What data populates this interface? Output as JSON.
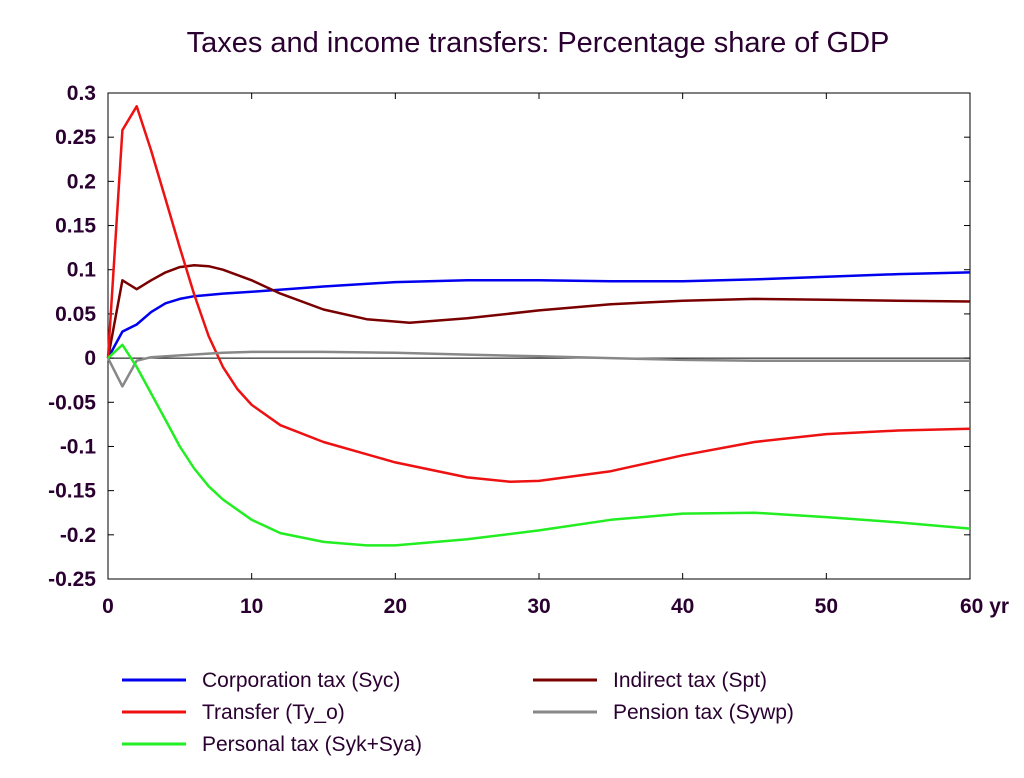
{
  "chart_data": {
    "type": "line",
    "title": "Taxes and income transfers: Percentage share of GDP",
    "xlabel": "",
    "ylabel": "",
    "xlim": [
      0,
      60
    ],
    "ylim": [
      -0.25,
      0.3
    ],
    "x_ticks": [
      0,
      10,
      20,
      30,
      40,
      50,
      60
    ],
    "x_tick_labels": [
      "0",
      "10",
      "20",
      "30",
      "40",
      "50",
      "60 yr"
    ],
    "y_ticks": [
      0.3,
      0.25,
      0.2,
      0.15,
      0.1,
      0.05,
      0,
      -0.05,
      -0.1,
      -0.15,
      -0.2,
      -0.25
    ],
    "y_tick_labels": [
      "0.3",
      "0.25",
      "0.2",
      "0.15",
      "0.1",
      "0.05",
      "0",
      "-0.05",
      "-0.1",
      "-0.15",
      "-0.2",
      "-0.25"
    ],
    "grid": false,
    "legend_position": "bottom",
    "series": [
      {
        "name": "Corporation tax (Syc)",
        "color": "#0000ee",
        "points": [
          [
            0,
            0
          ],
          [
            1,
            0.03
          ],
          [
            2,
            0.038
          ],
          [
            3,
            0.052
          ],
          [
            4,
            0.062
          ],
          [
            5,
            0.067
          ],
          [
            6,
            0.07
          ],
          [
            8,
            0.073
          ],
          [
            10,
            0.075
          ],
          [
            15,
            0.081
          ],
          [
            20,
            0.086
          ],
          [
            25,
            0.088
          ],
          [
            30,
            0.088
          ],
          [
            35,
            0.087
          ],
          [
            40,
            0.087
          ],
          [
            45,
            0.089
          ],
          [
            50,
            0.092
          ],
          [
            55,
            0.095
          ],
          [
            60,
            0.097
          ]
        ]
      },
      {
        "name": "Indirect tax (Spt)",
        "color": "#7a0000",
        "points": [
          [
            0,
            0
          ],
          [
            1,
            0.088
          ],
          [
            2,
            0.078
          ],
          [
            3,
            0.088
          ],
          [
            4,
            0.097
          ],
          [
            5,
            0.103
          ],
          [
            6,
            0.105
          ],
          [
            7,
            0.104
          ],
          [
            8,
            0.1
          ],
          [
            10,
            0.088
          ],
          [
            12,
            0.073
          ],
          [
            15,
            0.055
          ],
          [
            18,
            0.044
          ],
          [
            21,
            0.04
          ],
          [
            25,
            0.045
          ],
          [
            30,
            0.054
          ],
          [
            35,
            0.061
          ],
          [
            40,
            0.065
          ],
          [
            45,
            0.067
          ],
          [
            50,
            0.066
          ],
          [
            55,
            0.065
          ],
          [
            60,
            0.064
          ]
        ]
      },
      {
        "name": "Transfer (Ty_o)",
        "color": "#ee1111",
        "points": [
          [
            0,
            0
          ],
          [
            1,
            0.258
          ],
          [
            2,
            0.285
          ],
          [
            3,
            0.235
          ],
          [
            4,
            0.18
          ],
          [
            5,
            0.125
          ],
          [
            6,
            0.072
          ],
          [
            7,
            0.025
          ],
          [
            8,
            -0.01
          ],
          [
            9,
            -0.035
          ],
          [
            10,
            -0.053
          ],
          [
            12,
            -0.076
          ],
          [
            15,
            -0.095
          ],
          [
            20,
            -0.118
          ],
          [
            25,
            -0.135
          ],
          [
            28,
            -0.14
          ],
          [
            30,
            -0.139
          ],
          [
            35,
            -0.128
          ],
          [
            40,
            -0.11
          ],
          [
            45,
            -0.095
          ],
          [
            50,
            -0.086
          ],
          [
            55,
            -0.082
          ],
          [
            60,
            -0.08
          ]
        ]
      },
      {
        "name": "Pension tax (Sywp)",
        "color": "#888888",
        "points": [
          [
            0,
            0
          ],
          [
            1,
            -0.032
          ],
          [
            2,
            -0.003
          ],
          [
            3,
            0.001
          ],
          [
            5,
            0.003
          ],
          [
            8,
            0.006
          ],
          [
            10,
            0.007
          ],
          [
            15,
            0.007
          ],
          [
            20,
            0.006
          ],
          [
            25,
            0.004
          ],
          [
            30,
            0.002
          ],
          [
            35,
            0
          ],
          [
            40,
            -0.002
          ],
          [
            45,
            -0.003
          ],
          [
            50,
            -0.003
          ],
          [
            55,
            -0.003
          ],
          [
            60,
            -0.003
          ]
        ]
      },
      {
        "name": "Personal tax (Syk+Sya)",
        "color": "#22ee22",
        "points": [
          [
            0,
            0
          ],
          [
            1,
            0.015
          ],
          [
            2,
            -0.01
          ],
          [
            3,
            -0.04
          ],
          [
            4,
            -0.07
          ],
          [
            5,
            -0.1
          ],
          [
            6,
            -0.125
          ],
          [
            7,
            -0.145
          ],
          [
            8,
            -0.16
          ],
          [
            10,
            -0.183
          ],
          [
            12,
            -0.198
          ],
          [
            15,
            -0.208
          ],
          [
            18,
            -0.212
          ],
          [
            20,
            -0.212
          ],
          [
            25,
            -0.205
          ],
          [
            30,
            -0.195
          ],
          [
            35,
            -0.183
          ],
          [
            40,
            -0.176
          ],
          [
            45,
            -0.175
          ],
          [
            50,
            -0.18
          ],
          [
            55,
            -0.186
          ],
          [
            60,
            -0.193
          ]
        ]
      }
    ]
  },
  "legend": {
    "items": [
      "Corporation tax (Syc)",
      "Transfer (Ty_o)",
      "Personal tax (Syk+Sya)",
      "Indirect tax (Spt)",
      "Pension tax (Sywp)"
    ]
  }
}
